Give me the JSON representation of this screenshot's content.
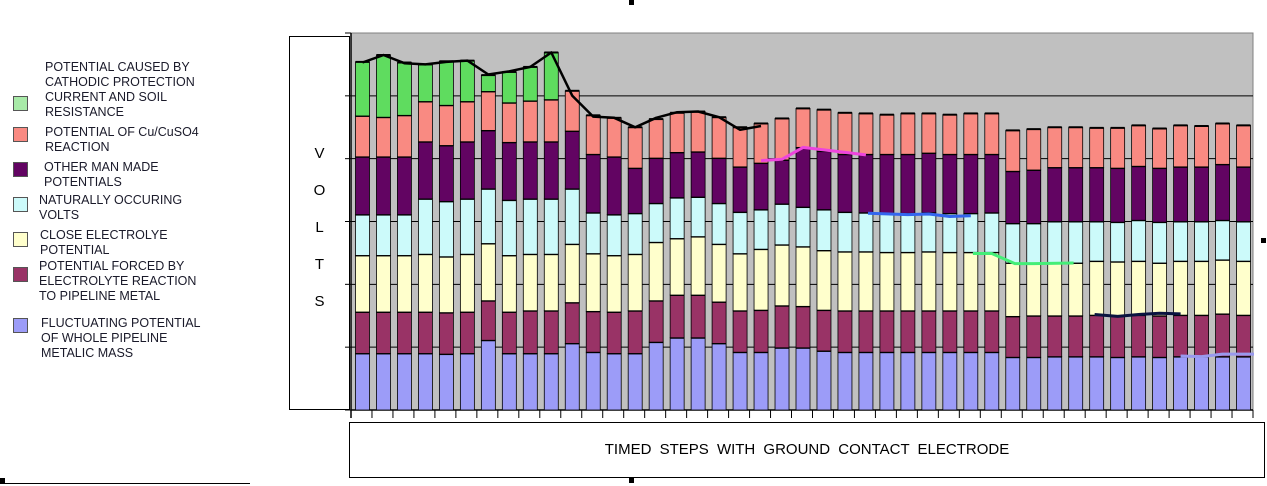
{
  "legend": [
    {
      "label": "POTENTIAL CAUSED BY\nCATHODIC PROTECTION\nCURRENT AND SOIL\nRESISTANCE",
      "color": "#a8eaa8"
    },
    {
      "label": "POTENTIAL OF Cu/CuSO4\nREACTION",
      "color": "#f98a82"
    },
    {
      "label": "OTHER MAN MADE\nPOTENTIALS",
      "color": "#620462"
    },
    {
      "label": "NATURALLY OCCURING\nVOLTS",
      "color": "#ccfafa"
    },
    {
      "label": "CLOSE ELECTROLYE\nPOTENTIAL",
      "color": "#ffffcc"
    },
    {
      "label": "POTENTIAL FORCED BY\nELECTROLYTE REACTION\nTO PIPELINE METAL",
      "color": "#993366"
    },
    {
      "label": "FLUCTUATING POTENTIAL\nOF WHOLE PIPELINE\nMETALIC MASS",
      "color": "#9c9cf8"
    }
  ],
  "chart_data": {
    "type": "bar",
    "stacked": true,
    "title": "",
    "ylabel": "V\nO\nL\nT\nS",
    "xlabel": "TIMED   STEPS   WITH  GROUND  CONTACT ELECTRODE",
    "ylim": [
      0,
      6
    ],
    "yticks": [
      0,
      1,
      2,
      3,
      4,
      5,
      6
    ],
    "grid": true,
    "legend_position": "left",
    "plot_bg": "#c0c0c0",
    "bar_green_color": "#5fdc5f",
    "categories_count": 43,
    "series": [
      {
        "name": "FLUCTUATING POTENTIAL OF WHOLE PIPELINE METALIC MASS",
        "color": "#9c9cf8",
        "values": [
          0.9,
          0.9,
          0.9,
          0.9,
          0.89,
          0.9,
          1.11,
          0.9,
          0.9,
          0.9,
          1.06,
          0.92,
          0.9,
          0.9,
          1.08,
          1.15,
          1.15,
          1.06,
          0.92,
          0.92,
          0.99,
          0.99,
          0.94,
          0.92,
          0.92,
          0.92,
          0.92,
          0.92,
          0.92,
          0.92,
          0.92,
          0.84,
          0.84,
          0.85,
          0.85,
          0.85,
          0.84,
          0.85,
          0.84,
          0.85,
          0.85,
          0.85,
          0.85
        ]
      },
      {
        "name": "POTENTIAL FORCED BY ELECTROLYTE REACTION TO PIPELINE METAL",
        "color": "#993366",
        "values": [
          0.66,
          0.66,
          0.66,
          0.66,
          0.66,
          0.66,
          0.63,
          0.66,
          0.68,
          0.68,
          0.65,
          0.65,
          0.66,
          0.68,
          0.66,
          0.68,
          0.68,
          0.66,
          0.66,
          0.67,
          0.67,
          0.66,
          0.65,
          0.66,
          0.66,
          0.66,
          0.66,
          0.66,
          0.66,
          0.66,
          0.66,
          0.65,
          0.66,
          0.65,
          0.65,
          0.66,
          0.66,
          0.66,
          0.66,
          0.66,
          0.66,
          0.68,
          0.66
        ]
      },
      {
        "name": "CLOSE ELECTROLYE POTENTIAL",
        "color": "#ffffcc",
        "values": [
          0.9,
          0.9,
          0.9,
          0.92,
          0.89,
          0.92,
          0.91,
          0.9,
          0.9,
          0.9,
          0.93,
          0.92,
          0.9,
          0.9,
          0.93,
          0.9,
          0.93,
          0.92,
          0.91,
          0.97,
          0.97,
          0.95,
          0.95,
          0.94,
          0.94,
          0.93,
          0.93,
          0.94,
          0.93,
          0.93,
          0.93,
          0.85,
          0.84,
          0.84,
          0.84,
          0.86,
          0.86,
          0.86,
          0.84,
          0.86,
          0.86,
          0.86,
          0.86
        ]
      },
      {
        "name": "NATURALLY OCCURING VOLTS",
        "color": "#ccfafa",
        "values": [
          0.65,
          0.65,
          0.65,
          0.88,
          0.88,
          0.88,
          0.87,
          0.88,
          0.88,
          0.88,
          0.88,
          0.65,
          0.65,
          0.65,
          0.62,
          0.65,
          0.63,
          0.65,
          0.66,
          0.63,
          0.65,
          0.63,
          0.65,
          0.63,
          0.62,
          0.62,
          0.62,
          0.62,
          0.62,
          0.62,
          0.63,
          0.63,
          0.63,
          0.66,
          0.66,
          0.63,
          0.63,
          0.65,
          0.65,
          0.63,
          0.63,
          0.63,
          0.63
        ]
      },
      {
        "name": "OTHER MAN MADE POTENTIALS",
        "color": "#620462",
        "values": [
          0.92,
          0.92,
          0.92,
          0.91,
          0.89,
          0.91,
          0.93,
          0.92,
          0.91,
          0.91,
          0.92,
          0.93,
          0.92,
          0.72,
          0.72,
          0.72,
          0.72,
          0.72,
          0.72,
          0.74,
          0.7,
          0.95,
          0.93,
          0.92,
          0.93,
          0.94,
          0.94,
          0.95,
          0.94,
          0.94,
          0.93,
          0.83,
          0.85,
          0.86,
          0.86,
          0.86,
          0.86,
          0.86,
          0.86,
          0.87,
          0.87,
          0.89,
          0.87
        ]
      },
      {
        "name": "POTENTIAL OF Cu/CuSO4 REACTION",
        "color": "#f98a82",
        "values": [
          0.65,
          0.63,
          0.66,
          0.64,
          0.64,
          0.64,
          0.62,
          0.63,
          0.65,
          0.67,
          0.64,
          0.62,
          0.62,
          0.65,
          0.62,
          0.63,
          0.64,
          0.65,
          0.63,
          0.63,
          0.66,
          0.62,
          0.66,
          0.66,
          0.65,
          0.63,
          0.65,
          0.63,
          0.63,
          0.65,
          0.65,
          0.65,
          0.65,
          0.64,
          0.64,
          0.63,
          0.64,
          0.65,
          0.63,
          0.66,
          0.65,
          0.65,
          0.66
        ]
      },
      {
        "name": "POTENTIAL CAUSED BY CATHODIC PROTECTION CURRENT AND SOIL RESISTANCE",
        "color": "#5fdc5f",
        "values": [
          0.86,
          0.99,
          0.84,
          0.59,
          0.7,
          0.65,
          0.26,
          0.49,
          0.54,
          0.75,
          0,
          0,
          0,
          0,
          0,
          0,
          0,
          0,
          0,
          0,
          0,
          0,
          0,
          0,
          0,
          0,
          0,
          0,
          0,
          0,
          0,
          0,
          0,
          0,
          0,
          0,
          0,
          0,
          0,
          0,
          0,
          0,
          0
        ]
      }
    ],
    "annotations": [
      {
        "name": "top-envelope-line",
        "color": "#000000",
        "points": [
          [
            1,
            5.53
          ],
          [
            2,
            5.65
          ],
          [
            3,
            5.52
          ],
          [
            4,
            5.5
          ],
          [
            5,
            5.54
          ],
          [
            6,
            5.56
          ],
          [
            7,
            5.34
          ],
          [
            8,
            5.39
          ],
          [
            9,
            5.46
          ],
          [
            10,
            5.69
          ],
          [
            11,
            5.0
          ],
          [
            12,
            4.67
          ],
          [
            13,
            4.65
          ],
          [
            14,
            4.5
          ],
          [
            15,
            4.65
          ],
          [
            16,
            4.74
          ],
          [
            17,
            4.75
          ],
          [
            18,
            4.66
          ],
          [
            19,
            4.46
          ],
          [
            20,
            4.52
          ]
        ]
      },
      {
        "name": "pink-line",
        "color": "#ee44dd",
        "points": [
          [
            20,
            3.97
          ],
          [
            21,
            3.99
          ],
          [
            22,
            4.18
          ],
          [
            24,
            4.1
          ],
          [
            25,
            4.06
          ]
        ]
      },
      {
        "name": "blue-line",
        "color": "#3366ee",
        "points": [
          [
            25.1,
            3.13
          ],
          [
            27,
            3.11
          ],
          [
            28,
            3.12
          ],
          [
            29,
            3.08
          ],
          [
            30,
            3.09
          ]
        ]
      },
      {
        "name": "green-line",
        "color": "#44ee77",
        "points": [
          [
            30.1,
            2.49
          ],
          [
            31,
            2.49
          ],
          [
            32.1,
            2.33
          ],
          [
            33,
            2.33
          ],
          [
            34.9,
            2.34
          ]
        ]
      },
      {
        "name": "navy-line",
        "color": "#0a1440",
        "points": [
          [
            35.9,
            1.52
          ],
          [
            37,
            1.49
          ],
          [
            38,
            1.52
          ],
          [
            39,
            1.54
          ],
          [
            40,
            1.53
          ]
        ]
      },
      {
        "name": "lavender-line",
        "color": "#9999ee",
        "points": [
          [
            40,
            0.86
          ],
          [
            41,
            0.85
          ],
          [
            42,
            0.89
          ],
          [
            43.5,
            0.89
          ]
        ]
      }
    ]
  }
}
